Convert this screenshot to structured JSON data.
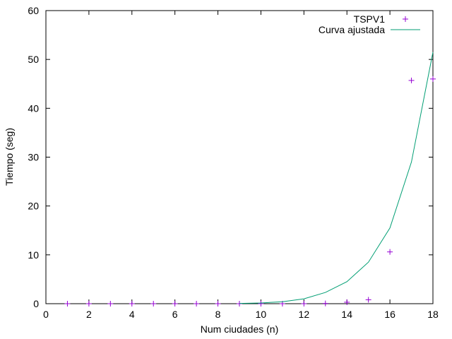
{
  "chart_data": {
    "type": "scatter",
    "xlabel": "Num ciudades (n)",
    "ylabel": "Tiempo (seg)",
    "xlim": [
      0,
      18
    ],
    "ylim": [
      0,
      60
    ],
    "xticks": [
      "0",
      "2",
      "4",
      "6",
      "8",
      "10",
      "12",
      "14",
      "16",
      "18"
    ],
    "yticks": [
      "0",
      "10",
      "20",
      "30",
      "40",
      "50",
      "60"
    ],
    "grid": false,
    "legend_position": "top-right",
    "series": [
      {
        "name": "TSPV1",
        "kind": "points",
        "marker": "plus",
        "color": "#9400d3",
        "x": [
          1,
          2,
          3,
          4,
          5,
          6,
          7,
          8,
          9,
          10,
          11,
          12,
          13,
          14,
          15,
          16,
          17,
          18
        ],
        "y": [
          0,
          0,
          0,
          0,
          0,
          0,
          0,
          0,
          0,
          0,
          0,
          0,
          0.05,
          0.3,
          0.8,
          10.6,
          45.7,
          46.0
        ]
      },
      {
        "name": "Curva ajustada",
        "kind": "line",
        "color": "#009e73",
        "x": [
          9,
          10,
          11,
          12,
          13,
          14,
          15,
          16,
          17,
          18
        ],
        "y": [
          0.05,
          0.15,
          0.4,
          1.0,
          2.3,
          4.5,
          8.5,
          15.5,
          29.0,
          51.5
        ]
      }
    ]
  }
}
